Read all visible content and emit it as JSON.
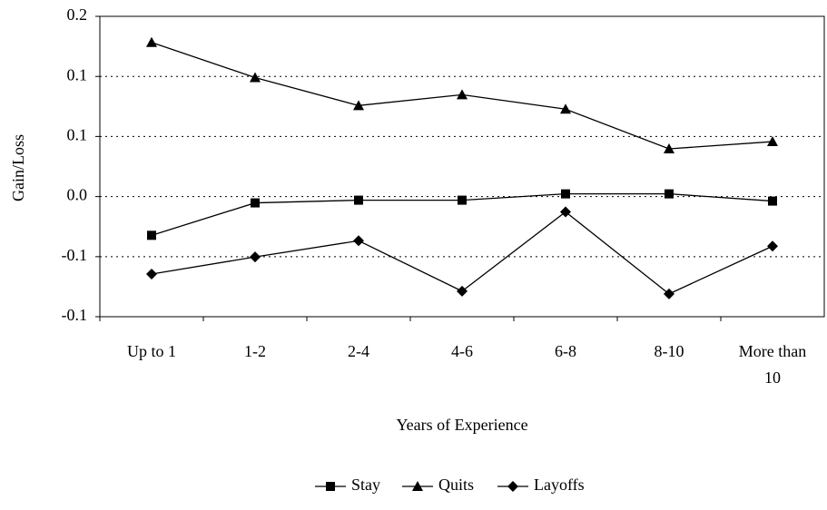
{
  "chart_data": {
    "type": "line",
    "x_label": "Years of Experience",
    "y_label": "Gain/Loss",
    "categories": [
      "Up to 1",
      "1-2",
      "2-4",
      "4-6",
      "6-8",
      "8-10",
      "More than 10"
    ],
    "series": [
      {
        "name": "Stay",
        "color": "#000000",
        "marker": "square",
        "values": [
          -0.043,
          -0.007,
          -0.004,
          -0.004,
          0.003,
          0.003,
          -0.005
        ]
      },
      {
        "name": "Quits",
        "color": "#000000",
        "marker": "triangle",
        "values": [
          0.171,
          0.132,
          0.101,
          0.113,
          0.097,
          0.053,
          0.061
        ]
      },
      {
        "name": "Layoffs",
        "color": "#000000",
        "marker": "diamond",
        "values": [
          -0.086,
          -0.067,
          -0.049,
          -0.105,
          -0.017,
          -0.108,
          -0.055
        ]
      }
    ],
    "ylim": [
      -0.1333,
      0.2
    ],
    "yticks": [
      {
        "value": -0.1333,
        "label": "-0.1"
      },
      {
        "value": -0.0667,
        "label": "-0.1"
      },
      {
        "value": 0,
        "label": "0.0"
      },
      {
        "value": 0.0667,
        "label": "0.1"
      },
      {
        "value": 0.1333,
        "label": "0.1"
      },
      {
        "value": 0.2,
        "label": "0.2"
      }
    ],
    "grid": true
  }
}
